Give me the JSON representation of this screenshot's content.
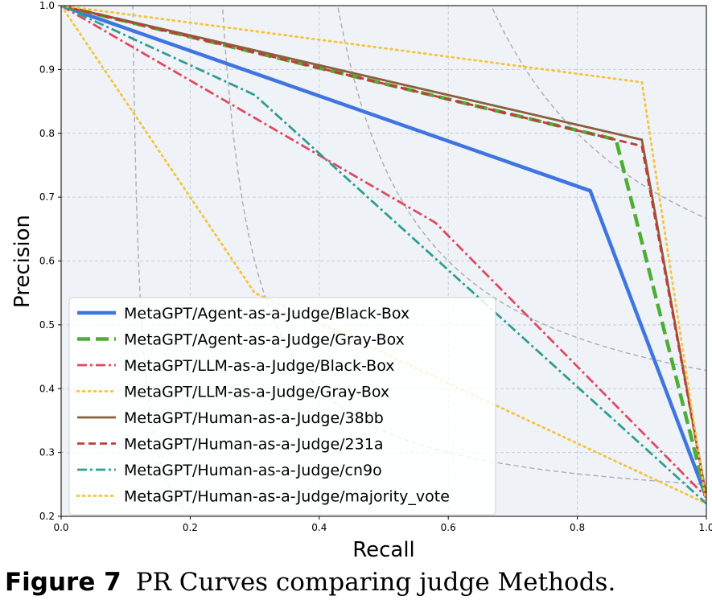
{
  "chart_data": {
    "type": "line",
    "xlabel": "Recall",
    "ylabel": "Precision",
    "xlim": [
      0.0,
      1.0
    ],
    "ylim": [
      0.2,
      1.0
    ],
    "xticks": [
      "0.0",
      "0.2",
      "0.4",
      "0.6",
      "0.8",
      "1.0"
    ],
    "yticks": [
      "0.2",
      "0.3",
      "0.4",
      "0.5",
      "0.6",
      "0.7",
      "0.8",
      "0.9",
      "1.0"
    ],
    "grid": true,
    "legend_position": "lower-left",
    "iso_f1_curves": [
      0.2,
      0.4,
      0.6,
      0.8
    ],
    "series": [
      {
        "name": "MetaGPT/Agent-as-a-Judge/Black-Box",
        "color": "#3f75e0",
        "style": "solid-thick",
        "x": [
          0.0,
          0.82,
          1.0
        ],
        "y": [
          1.0,
          0.71,
          0.23
        ]
      },
      {
        "name": "MetaGPT/Agent-as-a-Judge/Gray-Box",
        "color": "#4cae34",
        "style": "dashed-thick",
        "x": [
          0.0,
          0.86,
          1.0
        ],
        "y": [
          1.0,
          0.79,
          0.23
        ]
      },
      {
        "name": "MetaGPT/LLM-as-a-Judge/Black-Box",
        "color": "#de4b62",
        "style": "dashdot",
        "x": [
          0.0,
          0.58,
          1.0
        ],
        "y": [
          1.0,
          0.66,
          0.23
        ]
      },
      {
        "name": "MetaGPT/LLM-as-a-Judge/Gray-Box",
        "color": "#f6c33c",
        "style": "dotted",
        "x": [
          0.0,
          0.3,
          1.0
        ],
        "y": [
          1.0,
          0.55,
          0.22
        ]
      },
      {
        "name": "MetaGPT/Human-as-a-Judge/38bb",
        "color": "#8c5e3c",
        "style": "solid",
        "x": [
          0.0,
          0.9,
          1.0
        ],
        "y": [
          1.0,
          0.79,
          0.23
        ]
      },
      {
        "name": "MetaGPT/Human-as-a-Judge/231a",
        "color": "#c43a3a",
        "style": "dashed",
        "x": [
          0.0,
          0.9,
          1.0
        ],
        "y": [
          1.0,
          0.78,
          0.23
        ]
      },
      {
        "name": "MetaGPT/Human-as-a-Judge/cn9o",
        "color": "#2f9e92",
        "style": "dashdot",
        "x": [
          0.0,
          0.3,
          1.0
        ],
        "y": [
          1.0,
          0.86,
          0.22
        ]
      },
      {
        "name": "MetaGPT/Human-as-a-Judge/majority_vote",
        "color": "#f6c33c",
        "style": "dotted",
        "x": [
          0.0,
          0.9,
          1.0
        ],
        "y": [
          1.0,
          0.88,
          0.22
        ]
      }
    ]
  },
  "caption": {
    "label": "Figure 7",
    "text": "PR Curves comparing judge Methods."
  }
}
